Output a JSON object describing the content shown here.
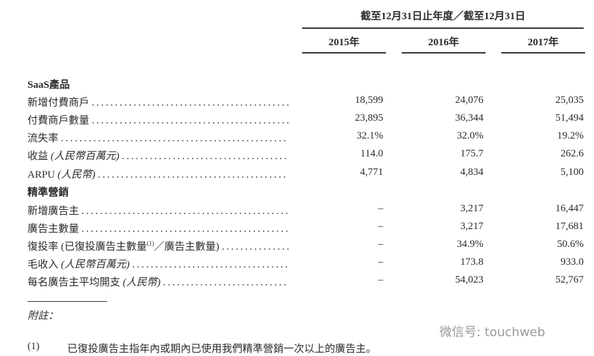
{
  "header": {
    "period": "截至12月31日止年度／截至12月31日",
    "years": [
      "2015年",
      "2016年",
      "2017年"
    ]
  },
  "sections": [
    {
      "title": "SaaS產品",
      "rows": [
        {
          "label": "新增付費商戶",
          "label_italic": "",
          "values": [
            "18,599",
            "24,076",
            "25,035"
          ]
        },
        {
          "label": "付費商戶數量",
          "label_italic": "",
          "values": [
            "23,895",
            "36,344",
            "51,494"
          ]
        },
        {
          "label": "流失率",
          "label_italic": "",
          "values": [
            "32.1%",
            "32.0%",
            "19.2%"
          ]
        },
        {
          "label": "收益",
          "label_italic": "(人民幣百萬元)",
          "values": [
            "114.0",
            "175.7",
            "262.6"
          ]
        },
        {
          "label": "ARPU",
          "label_italic": "(人民幣)",
          "values": [
            "4,771",
            "4,834",
            "5,100"
          ]
        }
      ]
    },
    {
      "title": "精準營銷",
      "rows": [
        {
          "label": "新增廣告主",
          "label_italic": "",
          "values": [
            "–",
            "3,217",
            "16,447"
          ]
        },
        {
          "label": "廣告主數量",
          "label_italic": "",
          "values": [
            "–",
            "3,217",
            "17,681"
          ]
        },
        {
          "label": "復投率 (已復投廣告主數量",
          "superscript": "(1)",
          "label_suffix": "／廣告主數量)",
          "label_italic": "",
          "values": [
            "–",
            "34.9%",
            "50.6%"
          ]
        },
        {
          "label": "毛收入",
          "label_italic": "(人民幣百萬元)",
          "values": [
            "–",
            "173.8",
            "933.0"
          ]
        },
        {
          "label": "每名廣告主平均開支",
          "label_italic": "(人民幣)",
          "values": [
            "–",
            "54,023",
            "52,767"
          ]
        }
      ]
    }
  ],
  "notes": {
    "title": "附註：",
    "items": [
      {
        "marker": "(1)",
        "text": "已復投廣告主指年內或期內已使用我們精準營銷一次以上的廣告主。"
      }
    ]
  },
  "watermark": "微信号: touchweb"
}
